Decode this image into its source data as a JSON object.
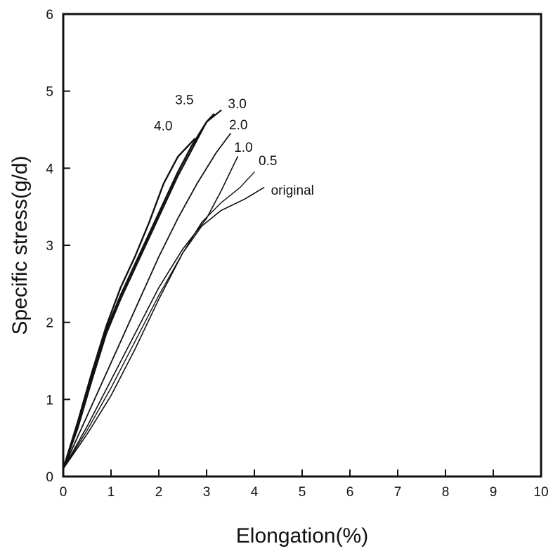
{
  "chart_data": {
    "type": "line",
    "title": "",
    "xlabel": "Elongation(%)",
    "ylabel": "Specific stress(g/d)",
    "xlim": [
      0,
      10
    ],
    "ylim": [
      0,
      6
    ],
    "xticks": [
      "0",
      "1",
      "2",
      "3",
      "4",
      "5",
      "6",
      "7",
      "8",
      "9",
      "10"
    ],
    "yticks": [
      "0",
      "1",
      "2",
      "3",
      "4",
      "5",
      "6"
    ],
    "grid": false,
    "legend": "none",
    "series": [
      {
        "name": "4.0",
        "label": "4.0",
        "x": [
          0,
          0.3,
          0.6,
          0.9,
          1.2,
          1.5,
          1.8,
          2.1,
          2.4,
          2.75
        ],
        "y": [
          0.1,
          0.7,
          1.35,
          1.95,
          2.45,
          2.85,
          3.3,
          3.8,
          4.15,
          4.38
        ]
      },
      {
        "name": "3.5",
        "label": "3.5",
        "x": [
          0,
          0.3,
          0.6,
          0.9,
          1.2,
          1.5,
          1.8,
          2.1,
          2.4,
          2.7,
          3.0,
          3.15
        ],
        "y": [
          0.1,
          0.65,
          1.3,
          1.9,
          2.35,
          2.75,
          3.15,
          3.55,
          3.95,
          4.3,
          4.6,
          4.7
        ]
      },
      {
        "name": "3.0",
        "label": "3.0",
        "x": [
          0,
          0.3,
          0.6,
          0.9,
          1.2,
          1.5,
          1.8,
          2.1,
          2.4,
          2.7,
          3.0,
          3.3
        ],
        "y": [
          0.1,
          0.62,
          1.25,
          1.85,
          2.3,
          2.7,
          3.1,
          3.5,
          3.9,
          4.25,
          4.6,
          4.75
        ]
      },
      {
        "name": "2.0",
        "label": "2.0",
        "x": [
          0,
          0.4,
          0.8,
          1.2,
          1.6,
          2.0,
          2.4,
          2.8,
          3.2,
          3.5
        ],
        "y": [
          0.1,
          0.65,
          1.2,
          1.75,
          2.3,
          2.85,
          3.35,
          3.8,
          4.2,
          4.45
        ]
      },
      {
        "name": "1.0",
        "label": "1.0",
        "x": [
          0,
          0.5,
          1.0,
          1.5,
          2.0,
          2.5,
          3.0,
          3.3,
          3.65
        ],
        "y": [
          0.1,
          0.65,
          1.25,
          1.85,
          2.45,
          2.95,
          3.35,
          3.7,
          4.15
        ]
      },
      {
        "name": "0.5",
        "label": "0.5",
        "x": [
          0,
          0.5,
          1.0,
          1.5,
          2.0,
          2.5,
          2.9,
          3.3,
          3.7,
          4.0
        ],
        "y": [
          0.1,
          0.6,
          1.15,
          1.75,
          2.35,
          2.9,
          3.3,
          3.55,
          3.75,
          3.95
        ]
      },
      {
        "name": "original",
        "label": "original",
        "x": [
          0,
          0.5,
          1.0,
          1.5,
          2.0,
          2.5,
          2.9,
          3.3,
          3.8,
          4.2
        ],
        "y": [
          0.1,
          0.55,
          1.05,
          1.65,
          2.3,
          2.9,
          3.25,
          3.45,
          3.6,
          3.75
        ]
      }
    ]
  }
}
